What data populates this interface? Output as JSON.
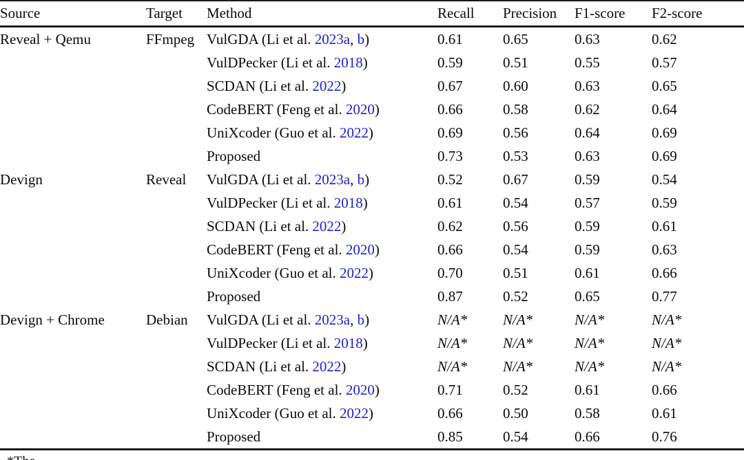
{
  "accent_link_color": "#1e1ed2",
  "table": {
    "headers": [
      "Source",
      "Target",
      "Method",
      "Recall",
      "Precision",
      "F1-score",
      "F2-score"
    ],
    "groups": [
      {
        "source": "Reveal + Qemu",
        "target": "FFmpeg",
        "rows": [
          {
            "method": [
              [
                "VulGDA (Li et al. ",
                0
              ],
              [
                "2023a",
                1
              ],
              [
                ", ",
                0
              ],
              [
                "b",
                1
              ],
              [
                ")",
                0
              ]
            ],
            "method_bold": false,
            "scores": [
              [
                "0.61",
                0,
                0
              ],
              [
                "0.65",
                1,
                0
              ],
              [
                "0.63",
                0,
                0
              ],
              [
                "0.62",
                0,
                0
              ]
            ]
          },
          {
            "method": [
              [
                "VulDPecker (Li et al. ",
                0
              ],
              [
                "2018",
                1
              ],
              [
                ")",
                0
              ]
            ],
            "method_bold": false,
            "scores": [
              [
                "0.59",
                0,
                0
              ],
              [
                "0.51",
                0,
                0
              ],
              [
                "0.55",
                0,
                0
              ],
              [
                "0.57",
                0,
                0
              ]
            ]
          },
          {
            "method": [
              [
                "SCDAN (Li et al. ",
                0
              ],
              [
                "2022",
                1
              ],
              [
                ")",
                0
              ]
            ],
            "method_bold": false,
            "scores": [
              [
                "0.67",
                0,
                0
              ],
              [
                "0.60",
                0,
                0
              ],
              [
                "0.63",
                0,
                0
              ],
              [
                "0.65",
                0,
                0
              ]
            ]
          },
          {
            "method": [
              [
                "CodeBERT (Feng et al. ",
                0
              ],
              [
                "2020",
                1
              ],
              [
                ")",
                0
              ]
            ],
            "method_bold": false,
            "scores": [
              [
                "0.66",
                0,
                0
              ],
              [
                "0.58",
                0,
                0
              ],
              [
                "0.62",
                0,
                0
              ],
              [
                "0.64",
                0,
                0
              ]
            ]
          },
          {
            "method": [
              [
                "UniXcoder (Guo et al. ",
                0
              ],
              [
                "2022",
                1
              ],
              [
                ")",
                0
              ]
            ],
            "method_bold": false,
            "scores": [
              [
                "0.69",
                0,
                0
              ],
              [
                "0.56",
                0,
                0
              ],
              [
                "0.64",
                0,
                0
              ],
              [
                "0.69",
                0,
                0
              ]
            ]
          },
          {
            "method": [
              [
                "Proposed",
                0
              ]
            ],
            "method_bold": true,
            "scores": [
              [
                "0.73",
                1,
                0
              ],
              [
                "0.53",
                0,
                0
              ],
              [
                "0.63",
                1,
                0
              ],
              [
                "0.69",
                1,
                0
              ]
            ]
          }
        ]
      },
      {
        "source": "Devign",
        "target": "Reveal",
        "rows": [
          {
            "method": [
              [
                "VulGDA (Li et al. ",
                0
              ],
              [
                "2023a",
                1
              ],
              [
                ", ",
                0
              ],
              [
                "b",
                1
              ],
              [
                ")",
                0
              ]
            ],
            "method_bold": false,
            "scores": [
              [
                "0.52",
                0,
                0
              ],
              [
                "0.67",
                1,
                0
              ],
              [
                "0.59",
                0,
                0
              ],
              [
                "0.54",
                0,
                0
              ]
            ]
          },
          {
            "method": [
              [
                "VulDPecker (Li et al. ",
                0
              ],
              [
                "2018",
                1
              ],
              [
                ")",
                0
              ]
            ],
            "method_bold": false,
            "scores": [
              [
                "0.61",
                0,
                0
              ],
              [
                "0.54",
                0,
                0
              ],
              [
                "0.57",
                0,
                0
              ],
              [
                "0.59",
                0,
                0
              ]
            ]
          },
          {
            "method": [
              [
                "SCDAN (Li et al. ",
                0
              ],
              [
                "2022",
                1
              ],
              [
                ")",
                0
              ]
            ],
            "method_bold": false,
            "scores": [
              [
                "0.62",
                0,
                0
              ],
              [
                "0.56",
                0,
                0
              ],
              [
                "0.59",
                0,
                0
              ],
              [
                "0.61",
                0,
                0
              ]
            ]
          },
          {
            "method": [
              [
                "CodeBERT (Feng et al. ",
                0
              ],
              [
                "2020",
                1
              ],
              [
                ")",
                0
              ]
            ],
            "method_bold": false,
            "scores": [
              [
                "0.66",
                0,
                0
              ],
              [
                "0.54",
                0,
                0
              ],
              [
                "0.59",
                0,
                0
              ],
              [
                "0.63",
                0,
                0
              ]
            ]
          },
          {
            "method": [
              [
                "UniXcoder (Guo et al. ",
                0
              ],
              [
                "2022",
                1
              ],
              [
                ")",
                0
              ]
            ],
            "method_bold": false,
            "scores": [
              [
                "0.70",
                0,
                0
              ],
              [
                "0.51",
                0,
                0
              ],
              [
                "0.61",
                0,
                0
              ],
              [
                "0.66",
                0,
                0
              ]
            ]
          },
          {
            "method": [
              [
                "Proposed",
                0
              ]
            ],
            "method_bold": true,
            "scores": [
              [
                "0.87",
                1,
                0
              ],
              [
                "0.52",
                0,
                0
              ],
              [
                "0.65",
                1,
                0
              ],
              [
                "0.77",
                1,
                0
              ]
            ]
          }
        ]
      },
      {
        "source": "Devign + Chrome",
        "target": "Debian",
        "rows": [
          {
            "method": [
              [
                "VulGDA (Li et al. ",
                0
              ],
              [
                "2023a",
                1
              ],
              [
                ", ",
                0
              ],
              [
                "b",
                1
              ],
              [
                ")",
                0
              ]
            ],
            "method_bold": false,
            "scores": [
              [
                "N/A*",
                0,
                1
              ],
              [
                "N/A*",
                0,
                1
              ],
              [
                "N/A*",
                0,
                1
              ],
              [
                "N/A*",
                0,
                1
              ]
            ]
          },
          {
            "method": [
              [
                "VulDPecker (Li et al. ",
                0
              ],
              [
                "2018",
                1
              ],
              [
                ")",
                0
              ]
            ],
            "method_bold": false,
            "scores": [
              [
                "N/A*",
                0,
                1
              ],
              [
                "N/A*",
                0,
                1
              ],
              [
                "N/A*",
                0,
                1
              ],
              [
                "N/A*",
                0,
                1
              ]
            ]
          },
          {
            "method": [
              [
                "SCDAN (Li et al. ",
                0
              ],
              [
                "2022",
                1
              ],
              [
                ")",
                0
              ]
            ],
            "method_bold": false,
            "scores": [
              [
                "N/A*",
                0,
                1
              ],
              [
                "N/A*",
                0,
                1
              ],
              [
                "N/A*",
                0,
                1
              ],
              [
                "N/A*",
                0,
                1
              ]
            ]
          },
          {
            "method": [
              [
                "CodeBERT (Feng et al. ",
                0
              ],
              [
                "2020",
                1
              ],
              [
                ")",
                0
              ]
            ],
            "method_bold": false,
            "scores": [
              [
                "0.71",
                0,
                0
              ],
              [
                "0.52",
                0,
                0
              ],
              [
                "0.61",
                0,
                0
              ],
              [
                "0.66",
                0,
                0
              ]
            ]
          },
          {
            "method": [
              [
                "UniXcoder (Guo et al. ",
                0
              ],
              [
                "2022",
                1
              ],
              [
                ")",
                0
              ]
            ],
            "method_bold": false,
            "scores": [
              [
                "0.66",
                0,
                0
              ],
              [
                "0.50",
                0,
                0
              ],
              [
                "0.58",
                0,
                0
              ],
              [
                "0.61",
                0,
                0
              ]
            ]
          },
          {
            "method": [
              [
                "Proposed",
                0
              ]
            ],
            "method_bold": true,
            "scores": [
              [
                "0.85",
                1,
                0
              ],
              [
                "0.54",
                1,
                0
              ],
              [
                "0.66",
                1,
                0
              ],
              [
                "0.76",
                1,
                0
              ]
            ]
          }
        ]
      }
    ]
  },
  "footnote": {
    "text": "*The"
  }
}
